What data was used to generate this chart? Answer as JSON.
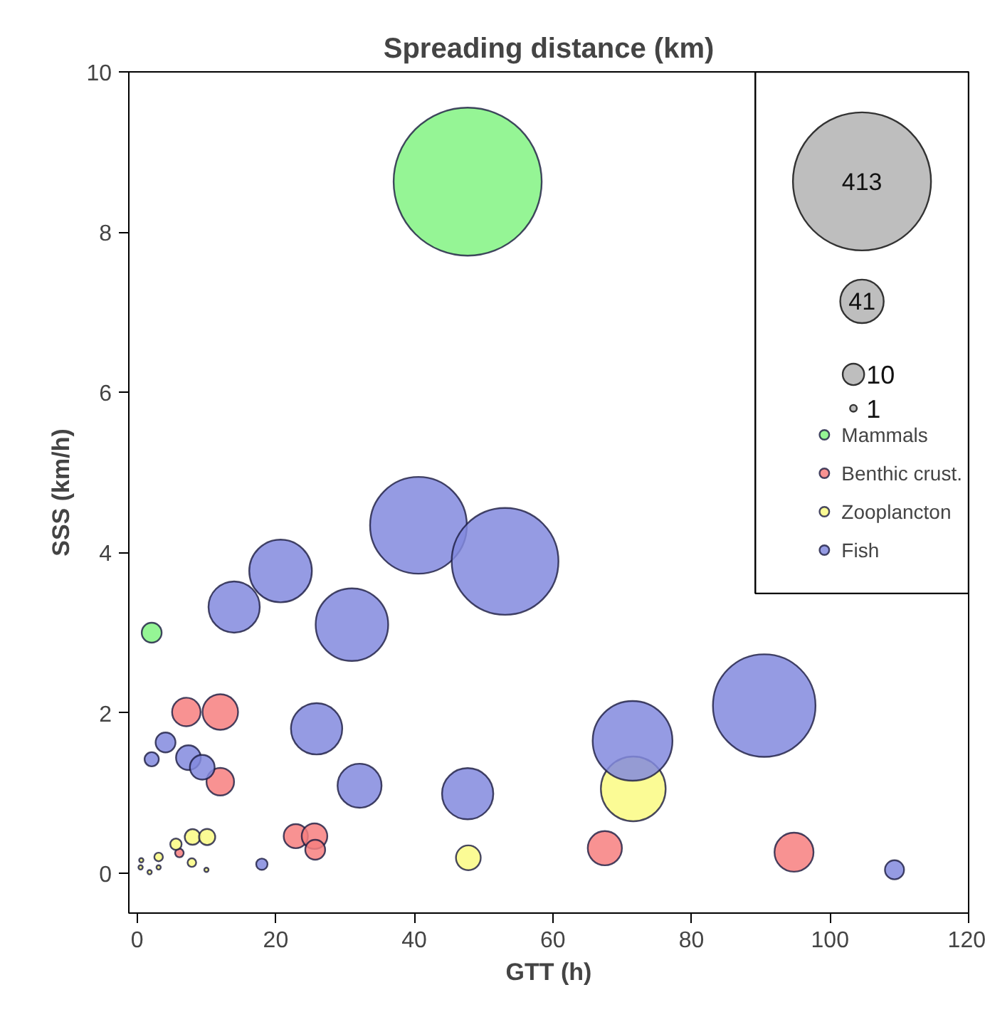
{
  "chart_data": {
    "type": "bubble",
    "title": "Spreading distance (km)",
    "xlabel": "GTT (h)",
    "ylabel": "SSS (km/h)",
    "xlim": [
      -1.2,
      120
    ],
    "ylim": [
      -0.5,
      10
    ],
    "xticks": [
      0,
      20,
      40,
      60,
      80,
      100,
      120
    ],
    "yticks": [
      0,
      2,
      4,
      6,
      8,
      10
    ],
    "size_legend": [
      413,
      41,
      10,
      1
    ],
    "legend": "right",
    "grid": false,
    "series": [
      {
        "name": "Mammals",
        "color": "#83f383",
        "x": [
          47.7,
          2.1
        ],
        "values": [
          8.63,
          3.0
        ],
        "sizes": [
          475,
          8.6
        ]
      },
      {
        "name": "Benthic crust.",
        "color": "#f77f7f",
        "x": [
          7.1,
          12.0,
          12.0,
          6.1,
          22.9,
          25.6,
          25.7,
          67.5,
          94.8
        ],
        "values": [
          2.01,
          2.01,
          1.14,
          0.25,
          0.46,
          0.46,
          0.29,
          0.31,
          0.26
        ],
        "sizes": [
          17.6,
          27.4,
          16.5,
          1.6,
          12.7,
          14.2,
          8.6,
          25.3,
          33
        ]
      },
      {
        "name": "Zooplancton",
        "color": "#fafa82",
        "x": [
          71.6,
          47.8,
          8.0,
          10.1,
          5.6,
          7.9,
          3.1,
          10.0,
          3.1,
          0.6,
          0.5,
          1.8
        ],
        "values": [
          1.05,
          0.19,
          0.45,
          0.45,
          0.36,
          0.13,
          0.2,
          0.04,
          0.07,
          0.16,
          0.07,
          0.01
        ],
        "sizes": [
          91,
          13.3,
          5.3,
          5.7,
          2.8,
          1.6,
          1.6,
          0.4,
          0.4,
          0.4,
          0.4,
          0.4
        ]
      },
      {
        "name": "Fish",
        "color": "#8389de",
        "x": [
          40.6,
          53.1,
          20.7,
          14.0,
          31.0,
          25.9,
          32.1,
          47.7,
          71.5,
          90.5,
          109.3,
          18.0,
          2.1,
          4.1,
          7.4,
          9.4
        ],
        "values": [
          4.34,
          3.89,
          3.77,
          3.32,
          3.1,
          1.8,
          1.09,
          0.99,
          1.65,
          2.09,
          0.04,
          0.11,
          1.42,
          1.63,
          1.44,
          1.32
        ],
        "sizes": [
          203,
          247,
          85,
          57,
          114,
          57,
          42,
          57,
          138,
          228,
          7.9,
          2.8,
          4.4,
          8.6,
          13.3,
          13.3
        ]
      }
    ]
  }
}
